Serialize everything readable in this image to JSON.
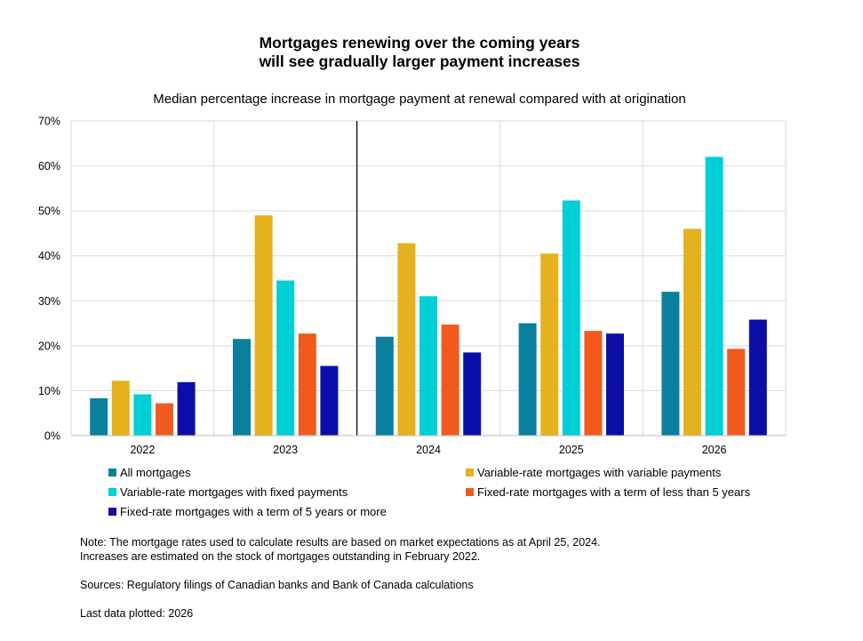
{
  "title_line1": "Mortgages renewing over the coming years",
  "title_line2": "will see gradually larger payment increases",
  "subtitle": "Median percentage increase in mortgage payment at renewal compared with at origination",
  "notes": {
    "line1": "Note: The mortgage rates used to calculate results are based on market expectations as at April 25, 2024.",
    "line2": "Increases are estimated on the stock of mortgages outstanding in February 2022.",
    "sources": "Sources: Regulatory filings of Canadian banks and Bank of Canada calculations",
    "last": "Last data plotted: 2026"
  },
  "chart_data": {
    "type": "bar",
    "title": "Mortgages renewing over the coming years will see gradually larger payment increases",
    "subtitle": "Median percentage increase in mortgage payment at renewal compared with at origination",
    "categories": [
      "2022",
      "2023",
      "2024",
      "2025",
      "2026"
    ],
    "ylim": [
      0,
      70
    ],
    "yticks": [
      0,
      10,
      20,
      30,
      40,
      50,
      60,
      70
    ],
    "ytick_labels": [
      "0%",
      "10%",
      "20%",
      "30%",
      "40%",
      "50%",
      "60%",
      "70%"
    ],
    "grid": true,
    "legend_position": "bottom",
    "series": [
      {
        "name": "All mortgages",
        "color": "#0b7f9e",
        "values": [
          8.3,
          21.5,
          22.0,
          25.0,
          32.0
        ]
      },
      {
        "name": "Variable-rate mortgages with variable payments",
        "color": "#e6b11e",
        "values": [
          12.2,
          49.0,
          42.8,
          40.5,
          46.0
        ]
      },
      {
        "name": "Variable-rate mortgages with fixed payments",
        "color": "#00cfd6",
        "values": [
          9.2,
          34.5,
          31.0,
          52.3,
          62.0
        ]
      },
      {
        "name": "Fixed-rate mortgages with a term of less than 5 years",
        "color": "#f15a1f",
        "values": [
          7.2,
          22.7,
          24.7,
          23.3,
          19.3
        ]
      },
      {
        "name": "Fixed-rate mortgages with a term of 5 years or more",
        "color": "#0b0fa8",
        "values": [
          11.9,
          15.5,
          18.5,
          22.7,
          25.8
        ]
      }
    ],
    "divider_between": [
      "2023",
      "2024"
    ]
  }
}
